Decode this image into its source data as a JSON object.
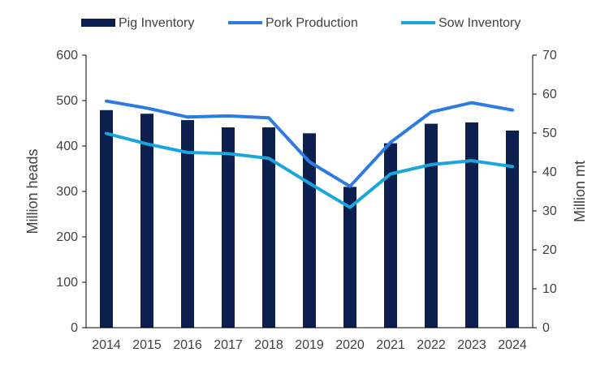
{
  "chart_data": {
    "type": "bar",
    "categories": [
      "2014",
      "2015",
      "2016",
      "2017",
      "2018",
      "2019",
      "2020",
      "2021",
      "2022",
      "2023",
      "2024"
    ],
    "series": [
      {
        "name": "Pig Inventory",
        "type": "bar",
        "axis": "left",
        "color": "#0d1f4f",
        "values": [
          479,
          471,
          457,
          441,
          441,
          428,
          310,
          406,
          449,
          452,
          434
        ]
      },
      {
        "name": "Pork Production",
        "type": "line",
        "axis": "right",
        "color": "#2d7be0",
        "values": [
          58.2,
          56.4,
          54.1,
          54.4,
          53.9,
          42.6,
          36.3,
          47.6,
          55.4,
          57.8,
          55.9
        ]
      },
      {
        "name": "Sow Inventory",
        "type": "line",
        "axis": "right",
        "color": "#1aa6dc",
        "values": [
          49.9,
          47.2,
          45.0,
          44.7,
          43.5,
          37.1,
          30.9,
          39.5,
          41.9,
          42.9,
          41.4
        ]
      }
    ],
    "y_left": {
      "label": "Million heads",
      "ylim": [
        0,
        600
      ],
      "ticks": [
        "0",
        "100",
        "200",
        "300",
        "400",
        "500",
        "600"
      ]
    },
    "y_right": {
      "label": "Million mt",
      "ylim": [
        0,
        70
      ],
      "ticks": [
        "0",
        "10",
        "20",
        "30",
        "40",
        "50",
        "60",
        "70"
      ]
    },
    "legend_position": "top",
    "grid": false
  }
}
